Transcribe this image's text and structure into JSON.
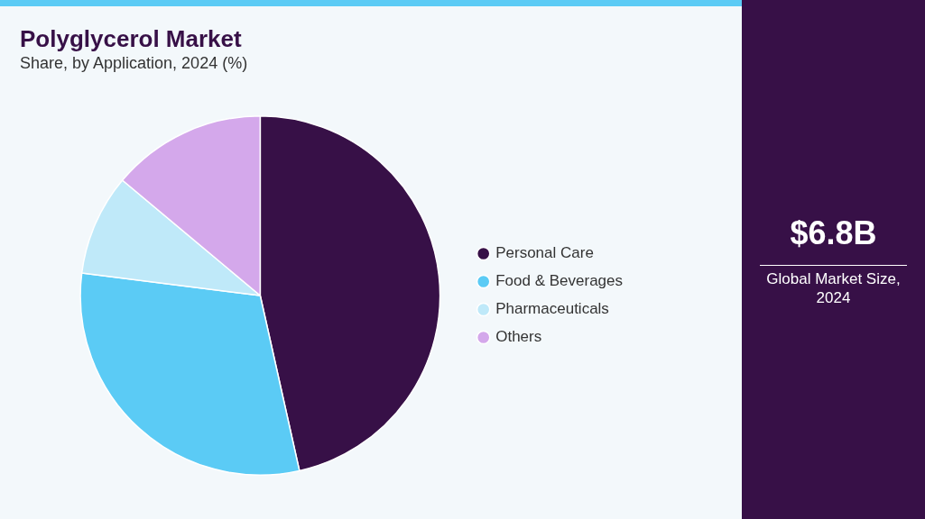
{
  "chart_data": {
    "type": "pie",
    "title": "Polyglycerol Market",
    "subtitle": "Share, by Application, 2024 (%)",
    "categories": [
      "Personal Care",
      "Food & Beverages",
      "Pharmaceuticals",
      "Others"
    ],
    "values": [
      46.5,
      30.5,
      9.1,
      13.9
    ],
    "colors": [
      "#371047",
      "#5bcbf5",
      "#bfe9f9",
      "#d4a8eb"
    ],
    "legend": "right",
    "annotations": [
      "$6.8B",
      "Global Market Size, 2024"
    ]
  }
}
